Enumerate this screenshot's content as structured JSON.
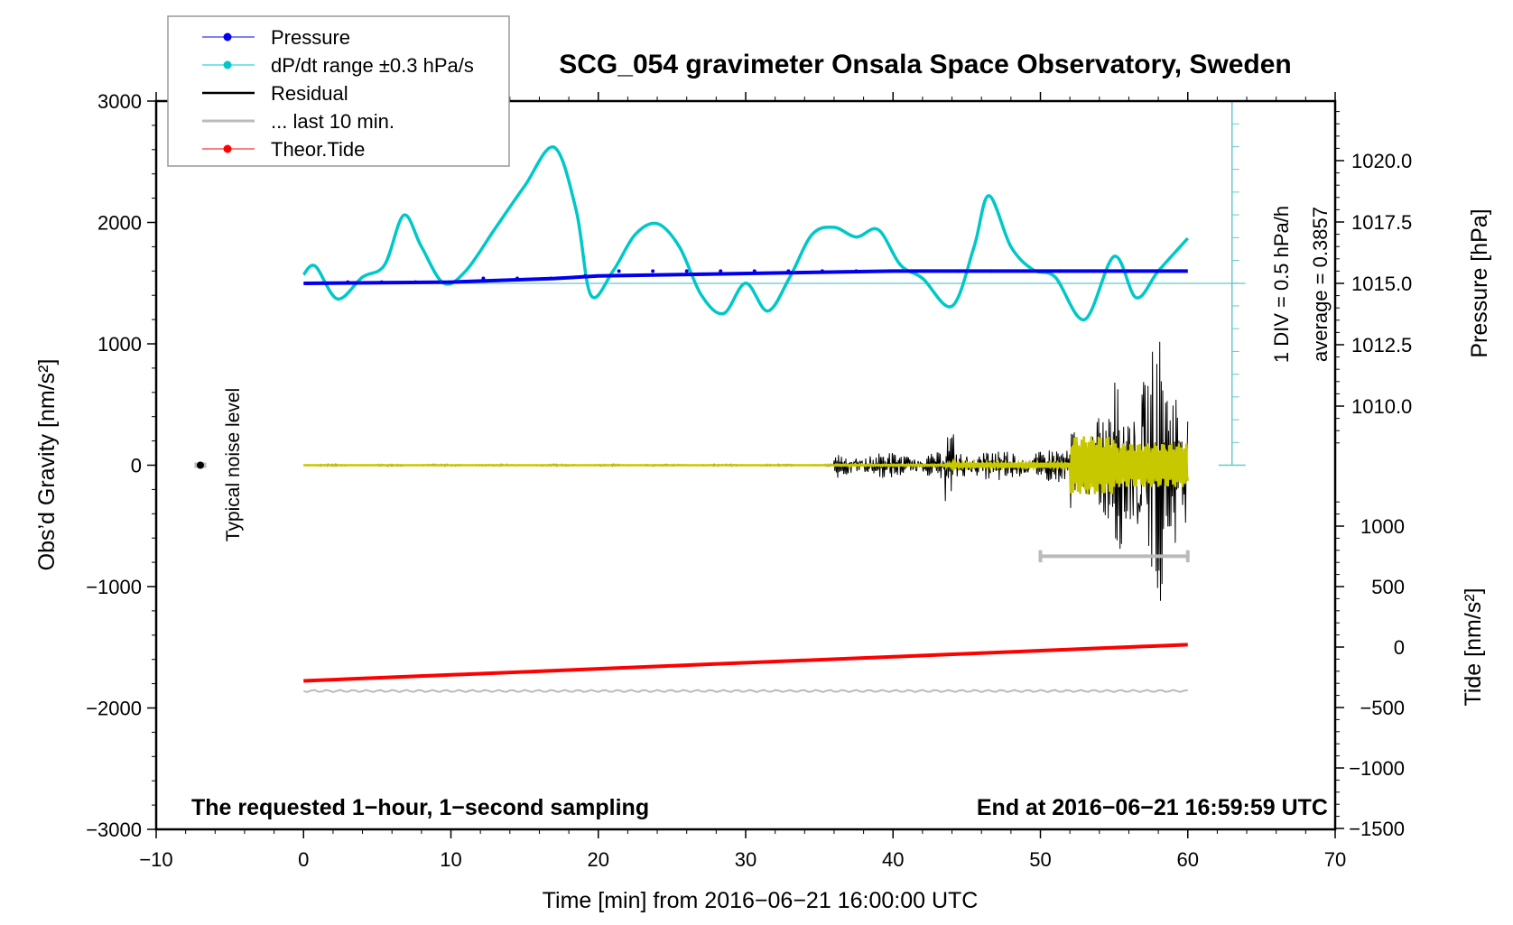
{
  "chart_data": {
    "type": "line",
    "title": "SCG_054 gravimeter Onsala Space Observatory, Sweden",
    "xlabel": "Time [min] from 2016−06−21 16:00:00 UTC",
    "ylabel": "Obs’d Gravity [nm/s²]",
    "ylabel_right_top": "Pressure [hPa]",
    "ylabel_right_bottom": "Tide [nm/s²]",
    "xlim": [
      -10,
      70
    ],
    "ylim": [
      -3000,
      3000
    ],
    "x_ticks": [
      "−10",
      "0",
      "10",
      "20",
      "30",
      "40",
      "50",
      "60",
      "70"
    ],
    "x_tick_values": [
      -10,
      0,
      10,
      20,
      30,
      40,
      50,
      60,
      70
    ],
    "y_ticks": [
      "3000",
      "2000",
      "1000",
      "0",
      "−1000",
      "−2000",
      "−3000"
    ],
    "y_tick_values": [
      3000,
      2000,
      1000,
      0,
      -1000,
      -2000,
      -3000
    ],
    "pressure_ticks": [
      "1020.0",
      "1017.5",
      "1015.0",
      "1012.5",
      "1010.0"
    ],
    "pressure_tick_values": [
      1020.0,
      1017.5,
      1015.0,
      1012.5,
      1010.0
    ],
    "tide_ticks": [
      "1000",
      "500",
      "0",
      "−500",
      "−1000",
      "−1500"
    ],
    "tide_tick_values": [
      1000,
      500,
      0,
      -500,
      -1000,
      -1500
    ],
    "legend": [
      {
        "label": "Pressure",
        "color": "#0000ee",
        "marker": true
      },
      {
        "label": "dP/dt range ±0.3 hPa/s",
        "color": "#00c8c8",
        "marker": true
      },
      {
        "label": "Residual",
        "color": "#000000",
        "marker": false
      },
      {
        "label": "... last 10 min.",
        "color": "#bbbbbb",
        "marker": false
      },
      {
        "label": "Theor.Tide",
        "color": "#ff0000",
        "marker": true
      }
    ],
    "legend_position": "top-left",
    "annotations": {
      "bottom_left": "The requested 1−hour, 1−second sampling",
      "bottom_right": "End at 2016−06−21 16:59:59 UTC",
      "div_scale": "1 DIV = 0.5 hPa/h",
      "average": "average = 0.3857",
      "noise": "Typical noise level"
    },
    "series": [
      {
        "name": "Pressure",
        "axis": "pressure",
        "x": [
          0,
          10,
          17,
          20,
          40,
          60
        ],
        "values": [
          1015.0,
          1015.05,
          1015.2,
          1015.3,
          1015.5,
          1015.5
        ]
      },
      {
        "name": "dP/dt",
        "axis": "gravity",
        "x": [
          0,
          0.8,
          2.3,
          4,
          5.5,
          6.8,
          8,
          9.5,
          11,
          13,
          15,
          17,
          18.5,
          19.5,
          21,
          22.5,
          24,
          25.5,
          27,
          28.5,
          30,
          31.5,
          33,
          34.5,
          36,
          37.5,
          39,
          40.5,
          42,
          44,
          45.5,
          46.5,
          48,
          49.5,
          51,
          53,
          55,
          56.5,
          58,
          60
        ],
        "values": [
          1570,
          1640,
          1370,
          1550,
          1650,
          2060,
          1800,
          1500,
          1600,
          1950,
          2300,
          2620,
          2100,
          1400,
          1600,
          1900,
          1990,
          1800,
          1400,
          1250,
          1500,
          1270,
          1550,
          1900,
          1960,
          1880,
          1940,
          1650,
          1540,
          1310,
          1800,
          2220,
          1800,
          1610,
          1550,
          1200,
          1720,
          1380,
          1600,
          1870
        ]
      },
      {
        "name": "Residual",
        "axis": "gravity",
        "note": "flat near 0 until ~36 min, then oscillations growing to about ±1200 near 57–58 min"
      },
      {
        "name": "Theor.Tide",
        "axis": "tide",
        "x": [
          0,
          60
        ],
        "values": [
          -280,
          20
        ]
      },
      {
        "name": "last 10 min",
        "axis": "gravity",
        "x": [
          0,
          60
        ],
        "values": [
          -1860,
          -1860
        ]
      }
    ],
    "dpdt_reference": {
      "center": 1015.0,
      "scale_divisions": 8
    }
  }
}
